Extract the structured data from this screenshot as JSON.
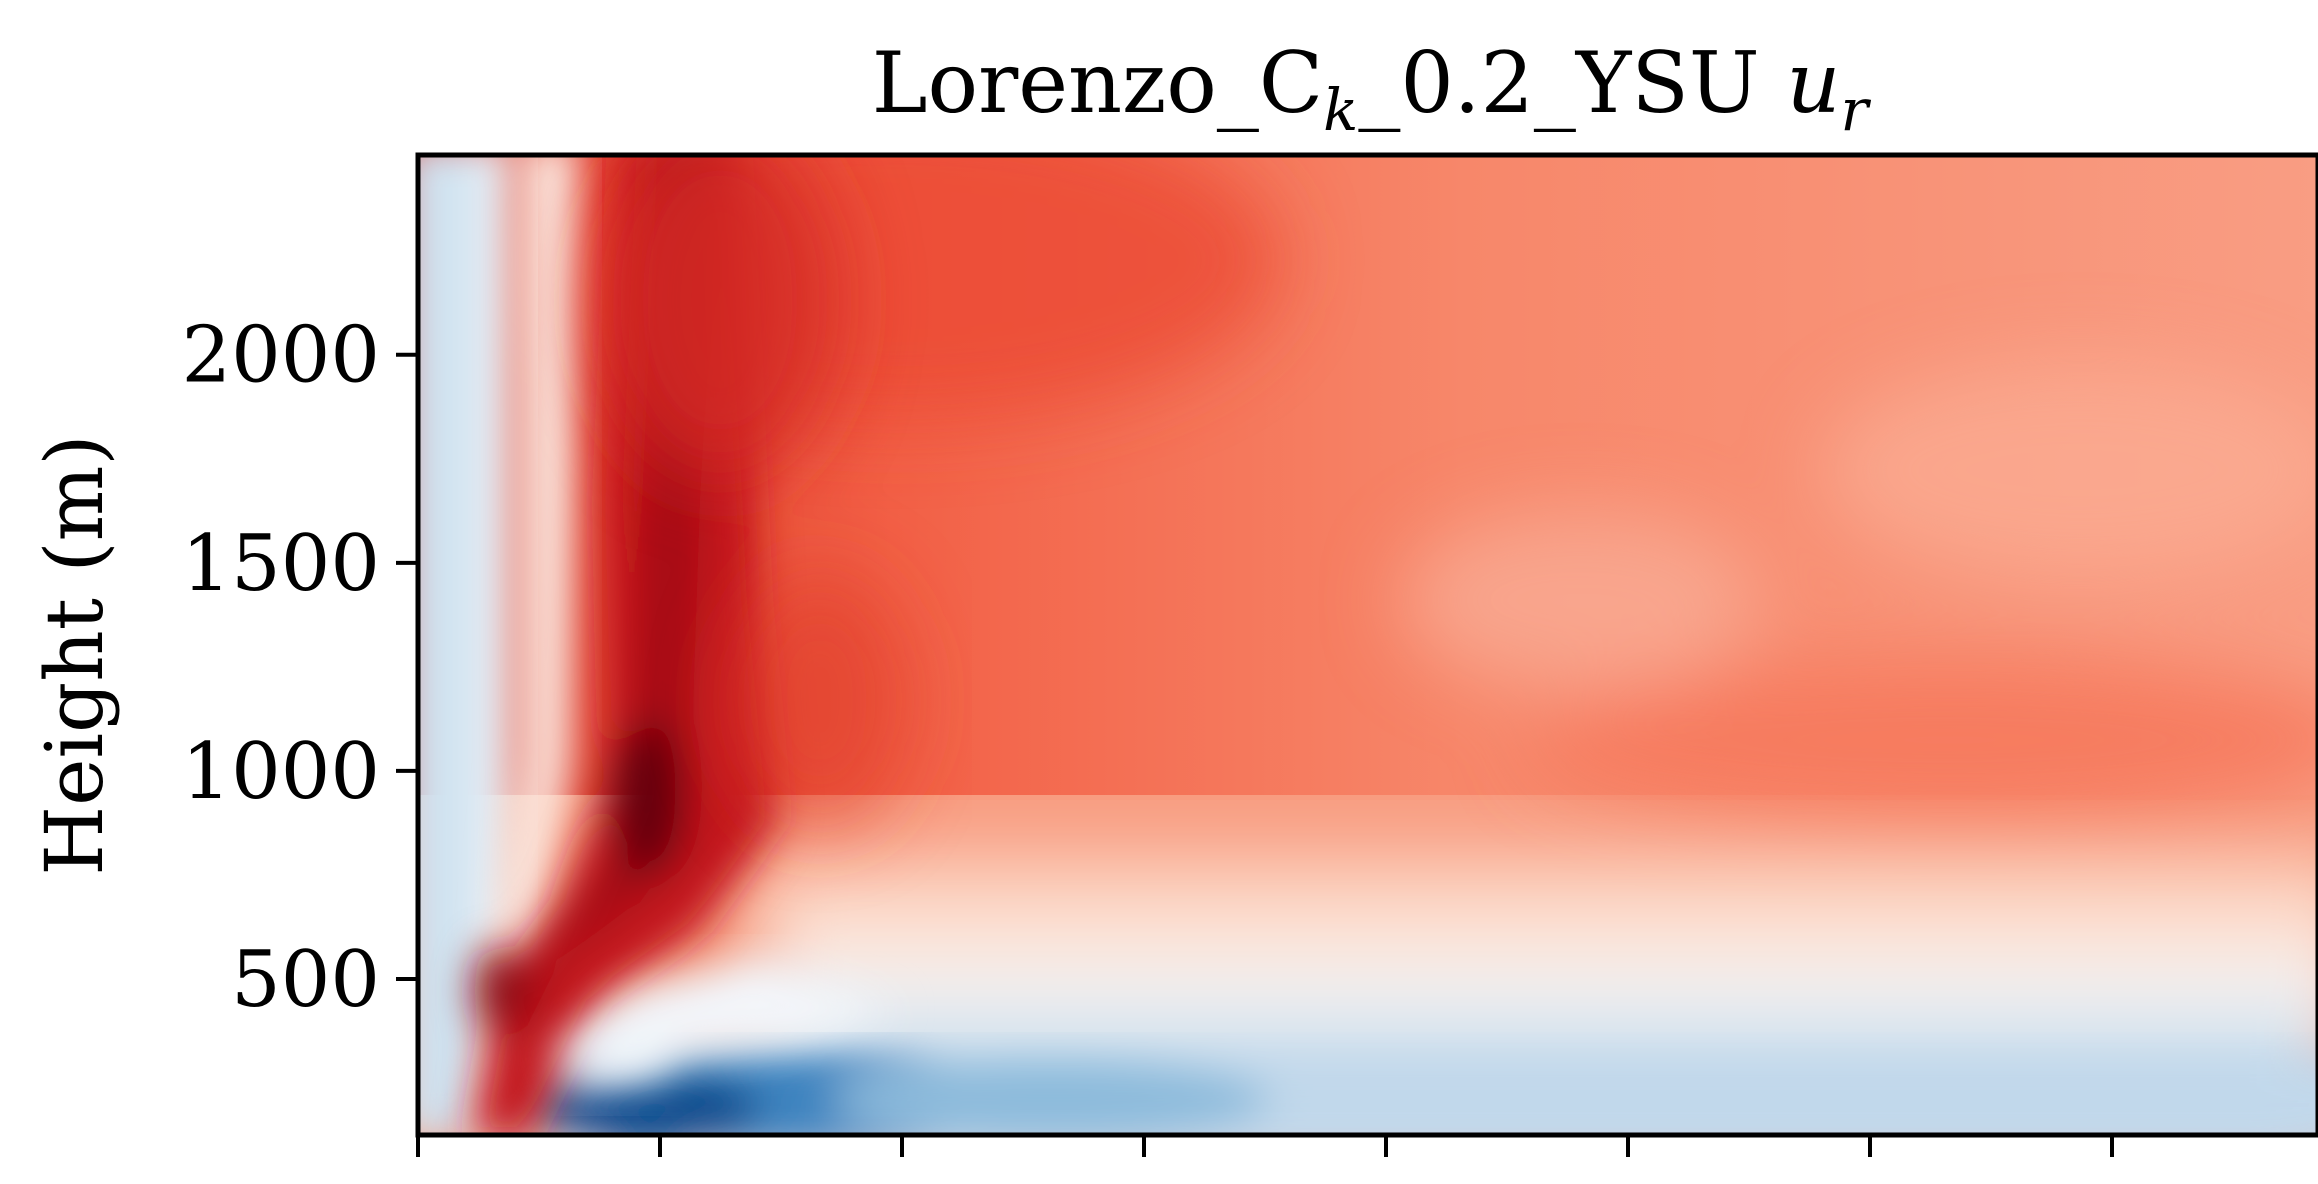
{
  "chart_data": {
    "type": "heatmap",
    "title": "Lorenzo_C",
    "title_subscript": "k",
    "title_suffix": "_0.2_YSU ",
    "title_variable": "u",
    "title_variable_subscript": "r",
    "xlabel": "",
    "ylabel": "Height (m)",
    "ylim": [
      125,
      2480
    ],
    "yticks": [
      500,
      1000,
      1500,
      2000
    ],
    "ytick_labels": [
      "500",
      "1000",
      "1500",
      "2000"
    ],
    "xtick_count": 8,
    "xtick_labels": [],
    "colormap": "RdBu_r",
    "colors": {
      "deep_red": "#67000d",
      "red": "#cb181d",
      "orange_red": "#f4694a",
      "salmon": "#fca487",
      "white": "#f7f7f7",
      "light_blue": "#d1e5f0",
      "blue": "#4393c3",
      "deep_blue": "#08457e"
    }
  }
}
